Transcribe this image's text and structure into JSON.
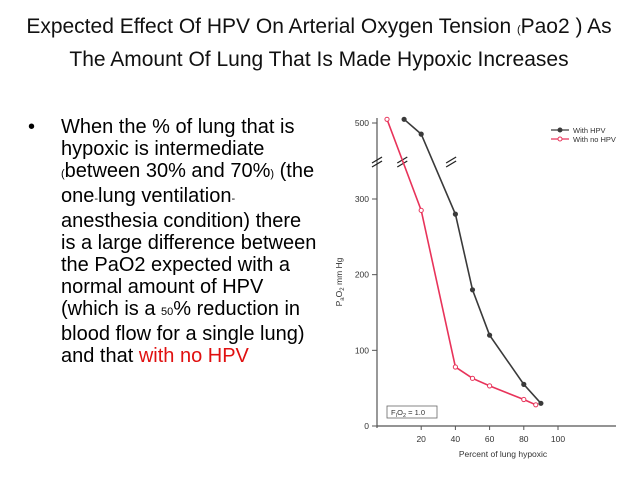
{
  "slide": {
    "title_part1": "Expected Effect Of HPV On Arterial Oxygen Tension ",
    "title_paren_open": "(",
    "title_part2": "Pao2 ) As The Amount Of Lung That Is Made Hypoxic Increases",
    "bullet": {
      "t1": "When the % of lung that is hypoxic is intermediate ",
      "t2": "(",
      "t3": "between 30% and 70%",
      "t4": ")",
      "t5": " (the one",
      "t6": "-",
      "t7": "lung ventilation",
      "t8": "-",
      "t9": "anesthesia condition) there is a large difference between the PaO2 expected with a normal amount of HPV (which is a ",
      "t10": "50",
      "t11": "% reduction in blood flow for a single lung) and that ",
      "t12": "with no HPV"
    }
  },
  "colors": {
    "with_hpv": "#3a3a3a",
    "no_hpv": "#e8335a",
    "highlight_text": "#e01010"
  },
  "chart_data": {
    "type": "line",
    "xlabel": "Percent of lung hypoxic",
    "ylabel_parts": [
      "P",
      "a",
      "O",
      "2",
      " mm Hg"
    ],
    "x_ticks": [
      20,
      40,
      60,
      80,
      100
    ],
    "y_ticks": [
      0,
      100,
      200,
      300,
      500
    ],
    "y_axis_break": true,
    "xlim": [
      0,
      100
    ],
    "ylim": [
      0,
      500
    ],
    "annotation_parts": [
      "F",
      "I",
      "O",
      "2",
      " = 1.0"
    ],
    "legend_position": "top-right",
    "series": [
      {
        "name": "With HPV",
        "marker": "filled-circle",
        "points": [
          [
            10,
            510
          ],
          [
            20,
            470
          ],
          [
            40,
            280
          ],
          [
            50,
            180
          ],
          [
            60,
            120
          ],
          [
            80,
            55
          ],
          [
            90,
            30
          ]
        ]
      },
      {
        "name": "With no HPV",
        "marker": "open-circle",
        "points": [
          [
            0,
            510
          ],
          [
            20,
            285
          ],
          [
            40,
            78
          ],
          [
            50,
            63
          ],
          [
            60,
            53
          ],
          [
            80,
            35
          ],
          [
            87,
            28
          ]
        ]
      }
    ]
  }
}
